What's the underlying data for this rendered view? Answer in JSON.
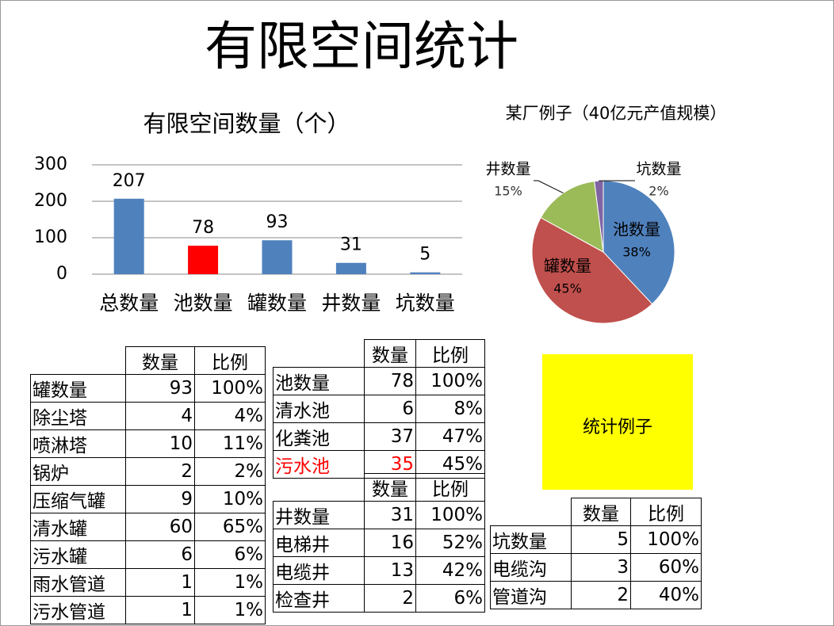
{
  "title": "有限空间统计",
  "chart_data": [
    {
      "type": "bar",
      "title": "有限空间数量（个）",
      "categories": [
        "总数量",
        "池数量",
        "罐数量",
        "井数量",
        "坑数量"
      ],
      "values": [
        207,
        78,
        93,
        31,
        5
      ],
      "colors": [
        "#4f81bd",
        "#ff0000",
        "#4f81bd",
        "#4f81bd",
        "#4f81bd"
      ],
      "ylim": [
        0,
        300
      ],
      "yticks": [
        0,
        100,
        200,
        300
      ],
      "grid": true
    },
    {
      "type": "pie",
      "title": "某厂例子（40亿元产值规模）",
      "categories": [
        "池数量",
        "罐数量",
        "井数量",
        "坑数量"
      ],
      "values": [
        38,
        45,
        15,
        2
      ],
      "value_labels": [
        "38%",
        "45%",
        "15%",
        "2%"
      ],
      "colors": [
        "#4f81bd",
        "#c0504d",
        "#9bbb59",
        "#8064a2"
      ]
    }
  ],
  "tables": [
    {
      "header": [
        "数量",
        "比例"
      ],
      "rows": [
        [
          "罐数量",
          93,
          "100%"
        ],
        [
          "除尘塔",
          4,
          "4%"
        ],
        [
          "喷淋塔",
          10,
          "11%"
        ],
        [
          "锅炉",
          2,
          "2%"
        ],
        [
          "压缩气罐",
          9,
          "10%"
        ],
        [
          "清水罐",
          60,
          "65%"
        ],
        [
          "污水罐",
          6,
          "6%"
        ],
        [
          "雨水管道",
          1,
          "1%"
        ],
        [
          "污水管道",
          1,
          "1%"
        ]
      ]
    },
    {
      "header": [
        "数量",
        "比例"
      ],
      "rows": [
        [
          "池数量",
          78,
          "100%"
        ],
        [
          "清水池",
          6,
          "8%"
        ],
        [
          "化粪池",
          37,
          "47%"
        ],
        [
          "污水池",
          35,
          "45%"
        ]
      ]
    },
    {
      "header": [
        "数量",
        "比例"
      ],
      "rows": [
        [
          "井数量",
          31,
          "100%"
        ],
        [
          "电梯井",
          16,
          "52%"
        ],
        [
          "电缆井",
          13,
          "42%"
        ],
        [
          "检查井",
          2,
          "6%"
        ]
      ]
    },
    {
      "header": [
        "数量",
        "比例"
      ],
      "rows": [
        [
          "坑数量",
          5,
          "100%"
        ],
        [
          "电缆沟",
          3,
          "60%"
        ],
        [
          "管道沟",
          2,
          "40%"
        ]
      ]
    }
  ],
  "excel_label": "统计例子"
}
